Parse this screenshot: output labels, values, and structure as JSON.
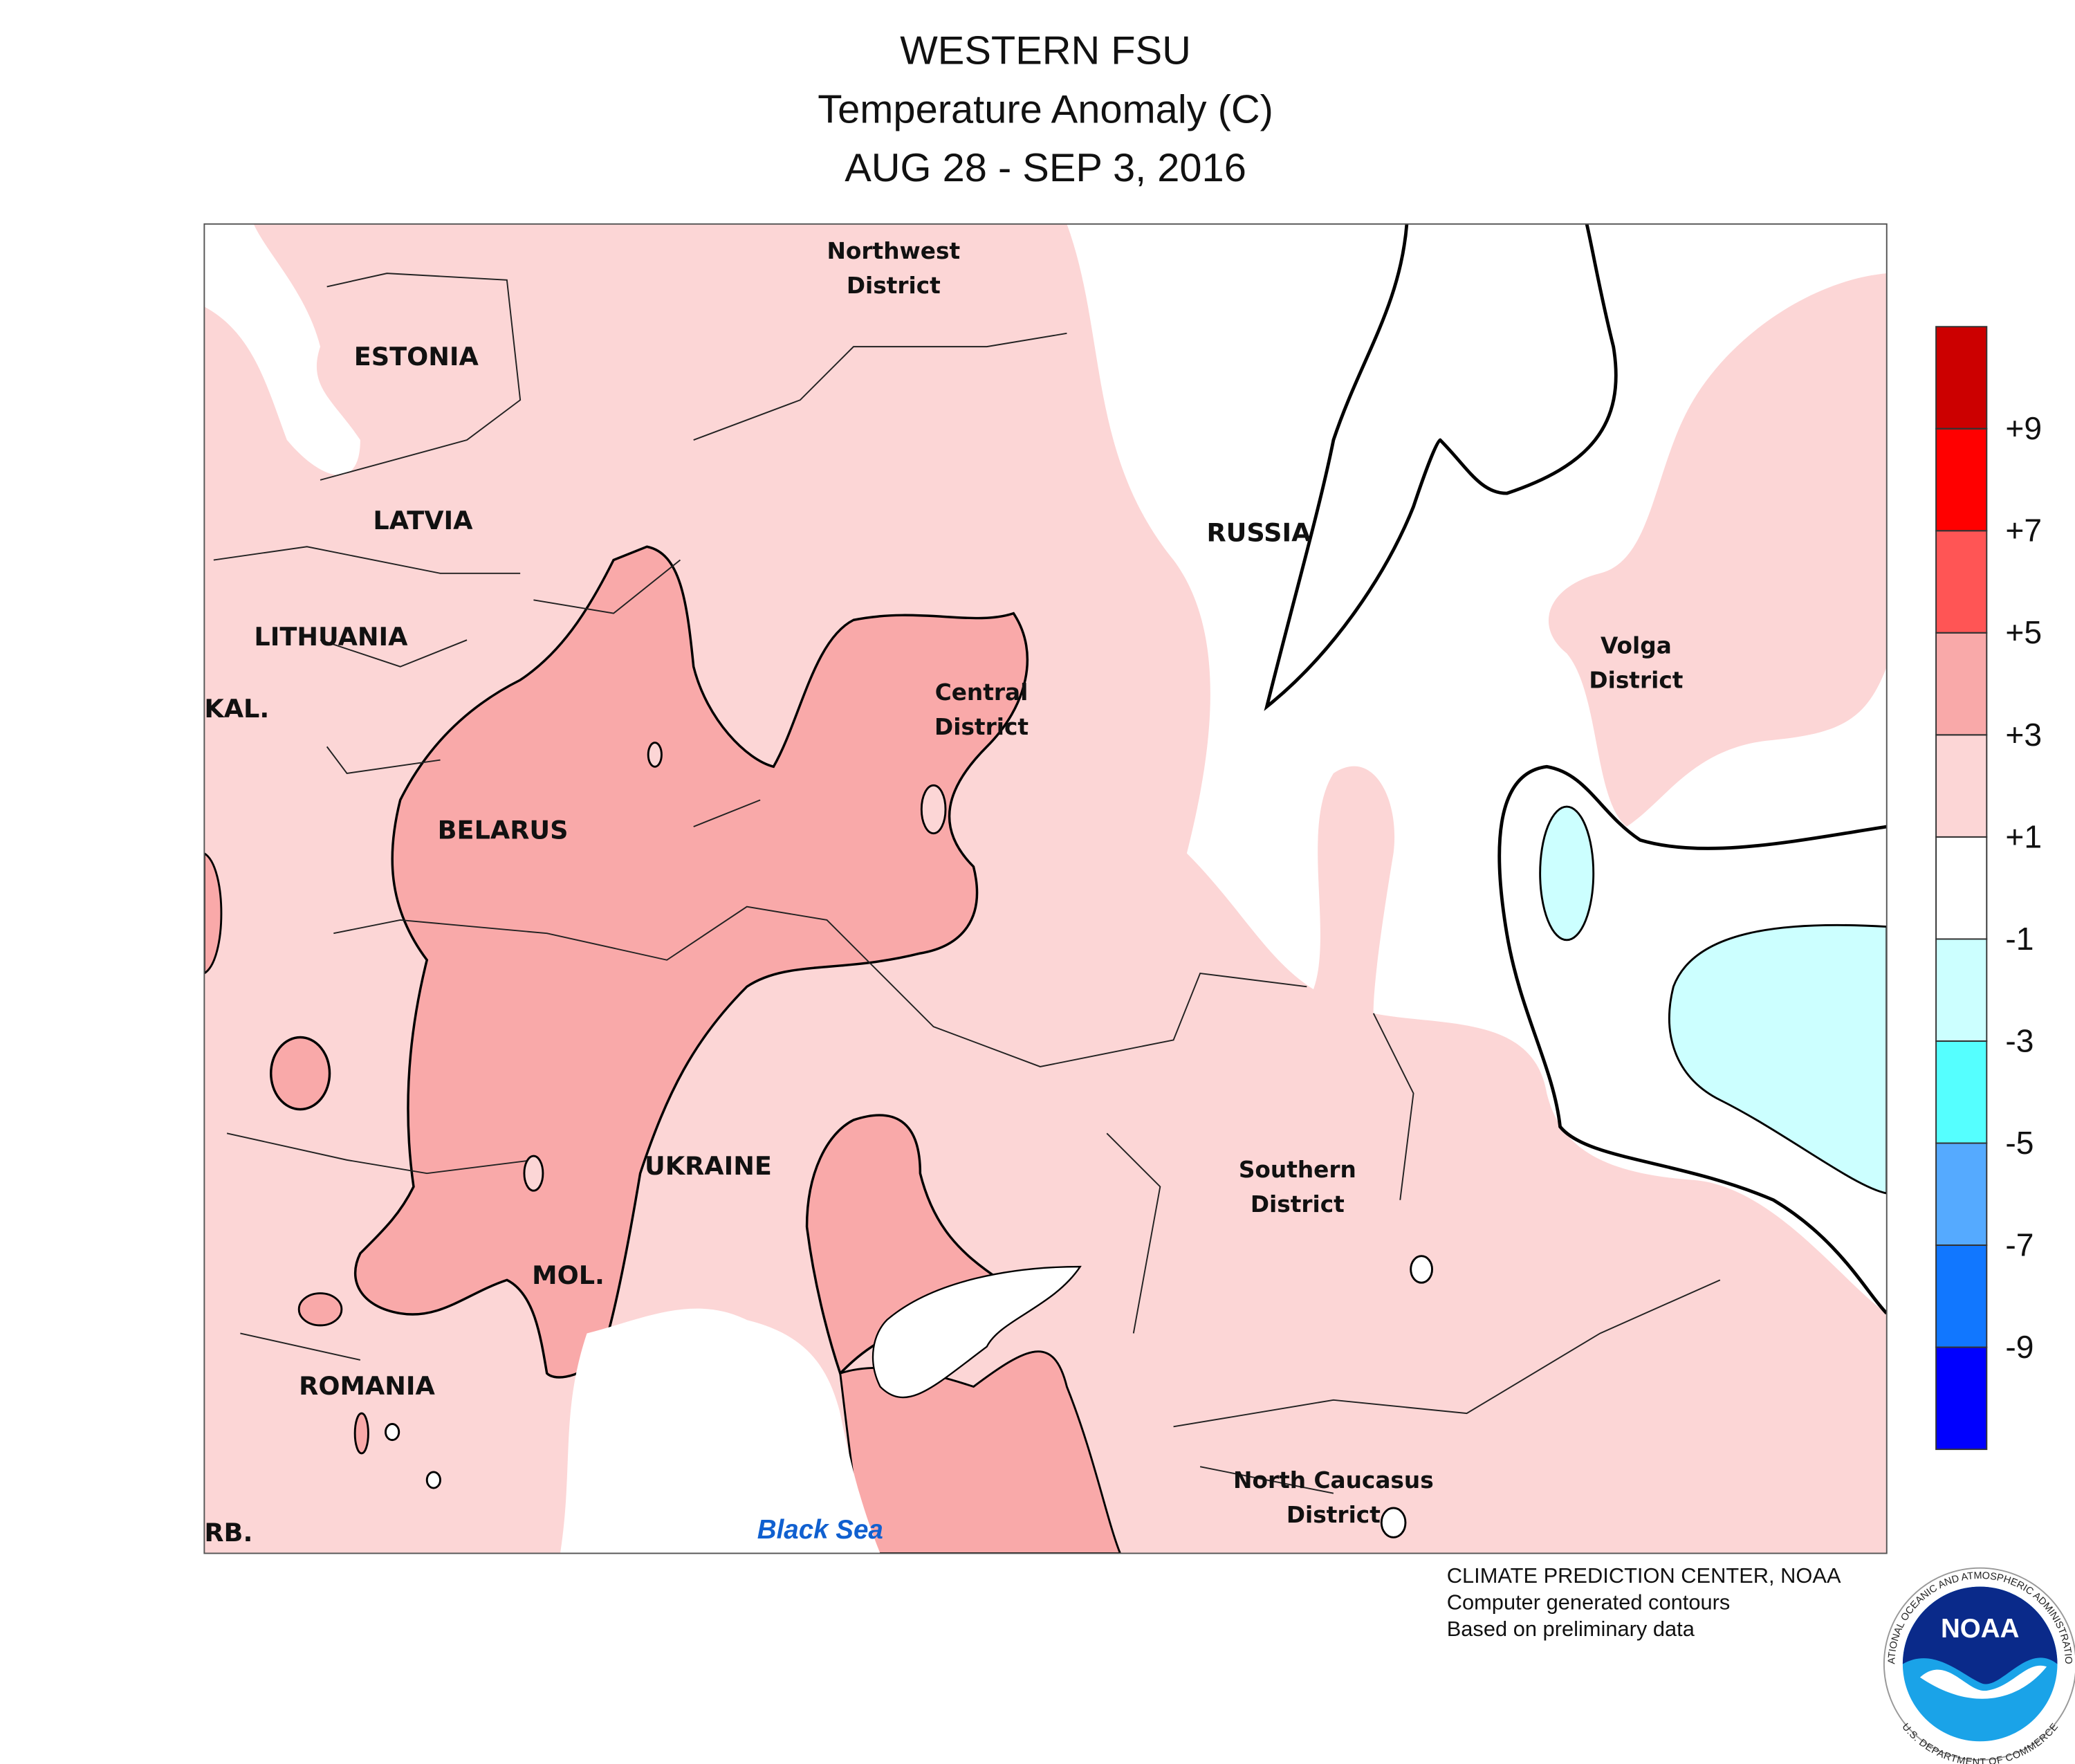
{
  "title": [
    "WESTERN FSU",
    "Temperature Anomaly (C)",
    "AUG 28 - SEP 3, 2016"
  ],
  "map_labels": {
    "estonia": "ESTONIA",
    "latvia": "LATVIA",
    "lithuania": "LITHUANIA",
    "kaliningrad": "KAL.",
    "belarus": "BELARUS",
    "ukraine": "UKRAINE",
    "moldova": "MOL.",
    "romania": "ROMANIA",
    "serbia": "RB.",
    "russia": "RUSSIA",
    "northwest": [
      "Northwest",
      "District"
    ],
    "central": [
      "Central",
      "District"
    ],
    "volga": [
      "Volga",
      "District"
    ],
    "southern": [
      "Southern",
      "District"
    ],
    "north_caucasus": [
      "North Caucasus",
      "District"
    ],
    "black_sea": "Black Sea"
  },
  "legend": {
    "colors": [
      "#cc0000",
      "#ff0000",
      "#ff5555",
      "#f9a9a9",
      "#fcd6d6",
      "#ffffff",
      "#ccffff",
      "#55ffff",
      "#55aaff",
      "#1177ff",
      "#0000ff"
    ],
    "ticks": [
      {
        "value": 9,
        "label": "+9"
      },
      {
        "value": 7,
        "label": "+7"
      },
      {
        "value": 5,
        "label": "+5"
      },
      {
        "value": 3,
        "label": "+3"
      },
      {
        "value": 1,
        "label": "+1"
      },
      -1,
      -3,
      -5,
      -7,
      -9
    ]
  },
  "credits": [
    "CLIMATE PREDICTION CENTER, NOAA",
    "Computer generated contours",
    "Based on preliminary data"
  ],
  "logo": {
    "name": "NOAA",
    "agency": "NATIONAL OCEANIC AND ATMOSPHERIC ADMINISTRATION",
    "department": "U.S. DEPARTMENT OF COMMERCE"
  }
}
